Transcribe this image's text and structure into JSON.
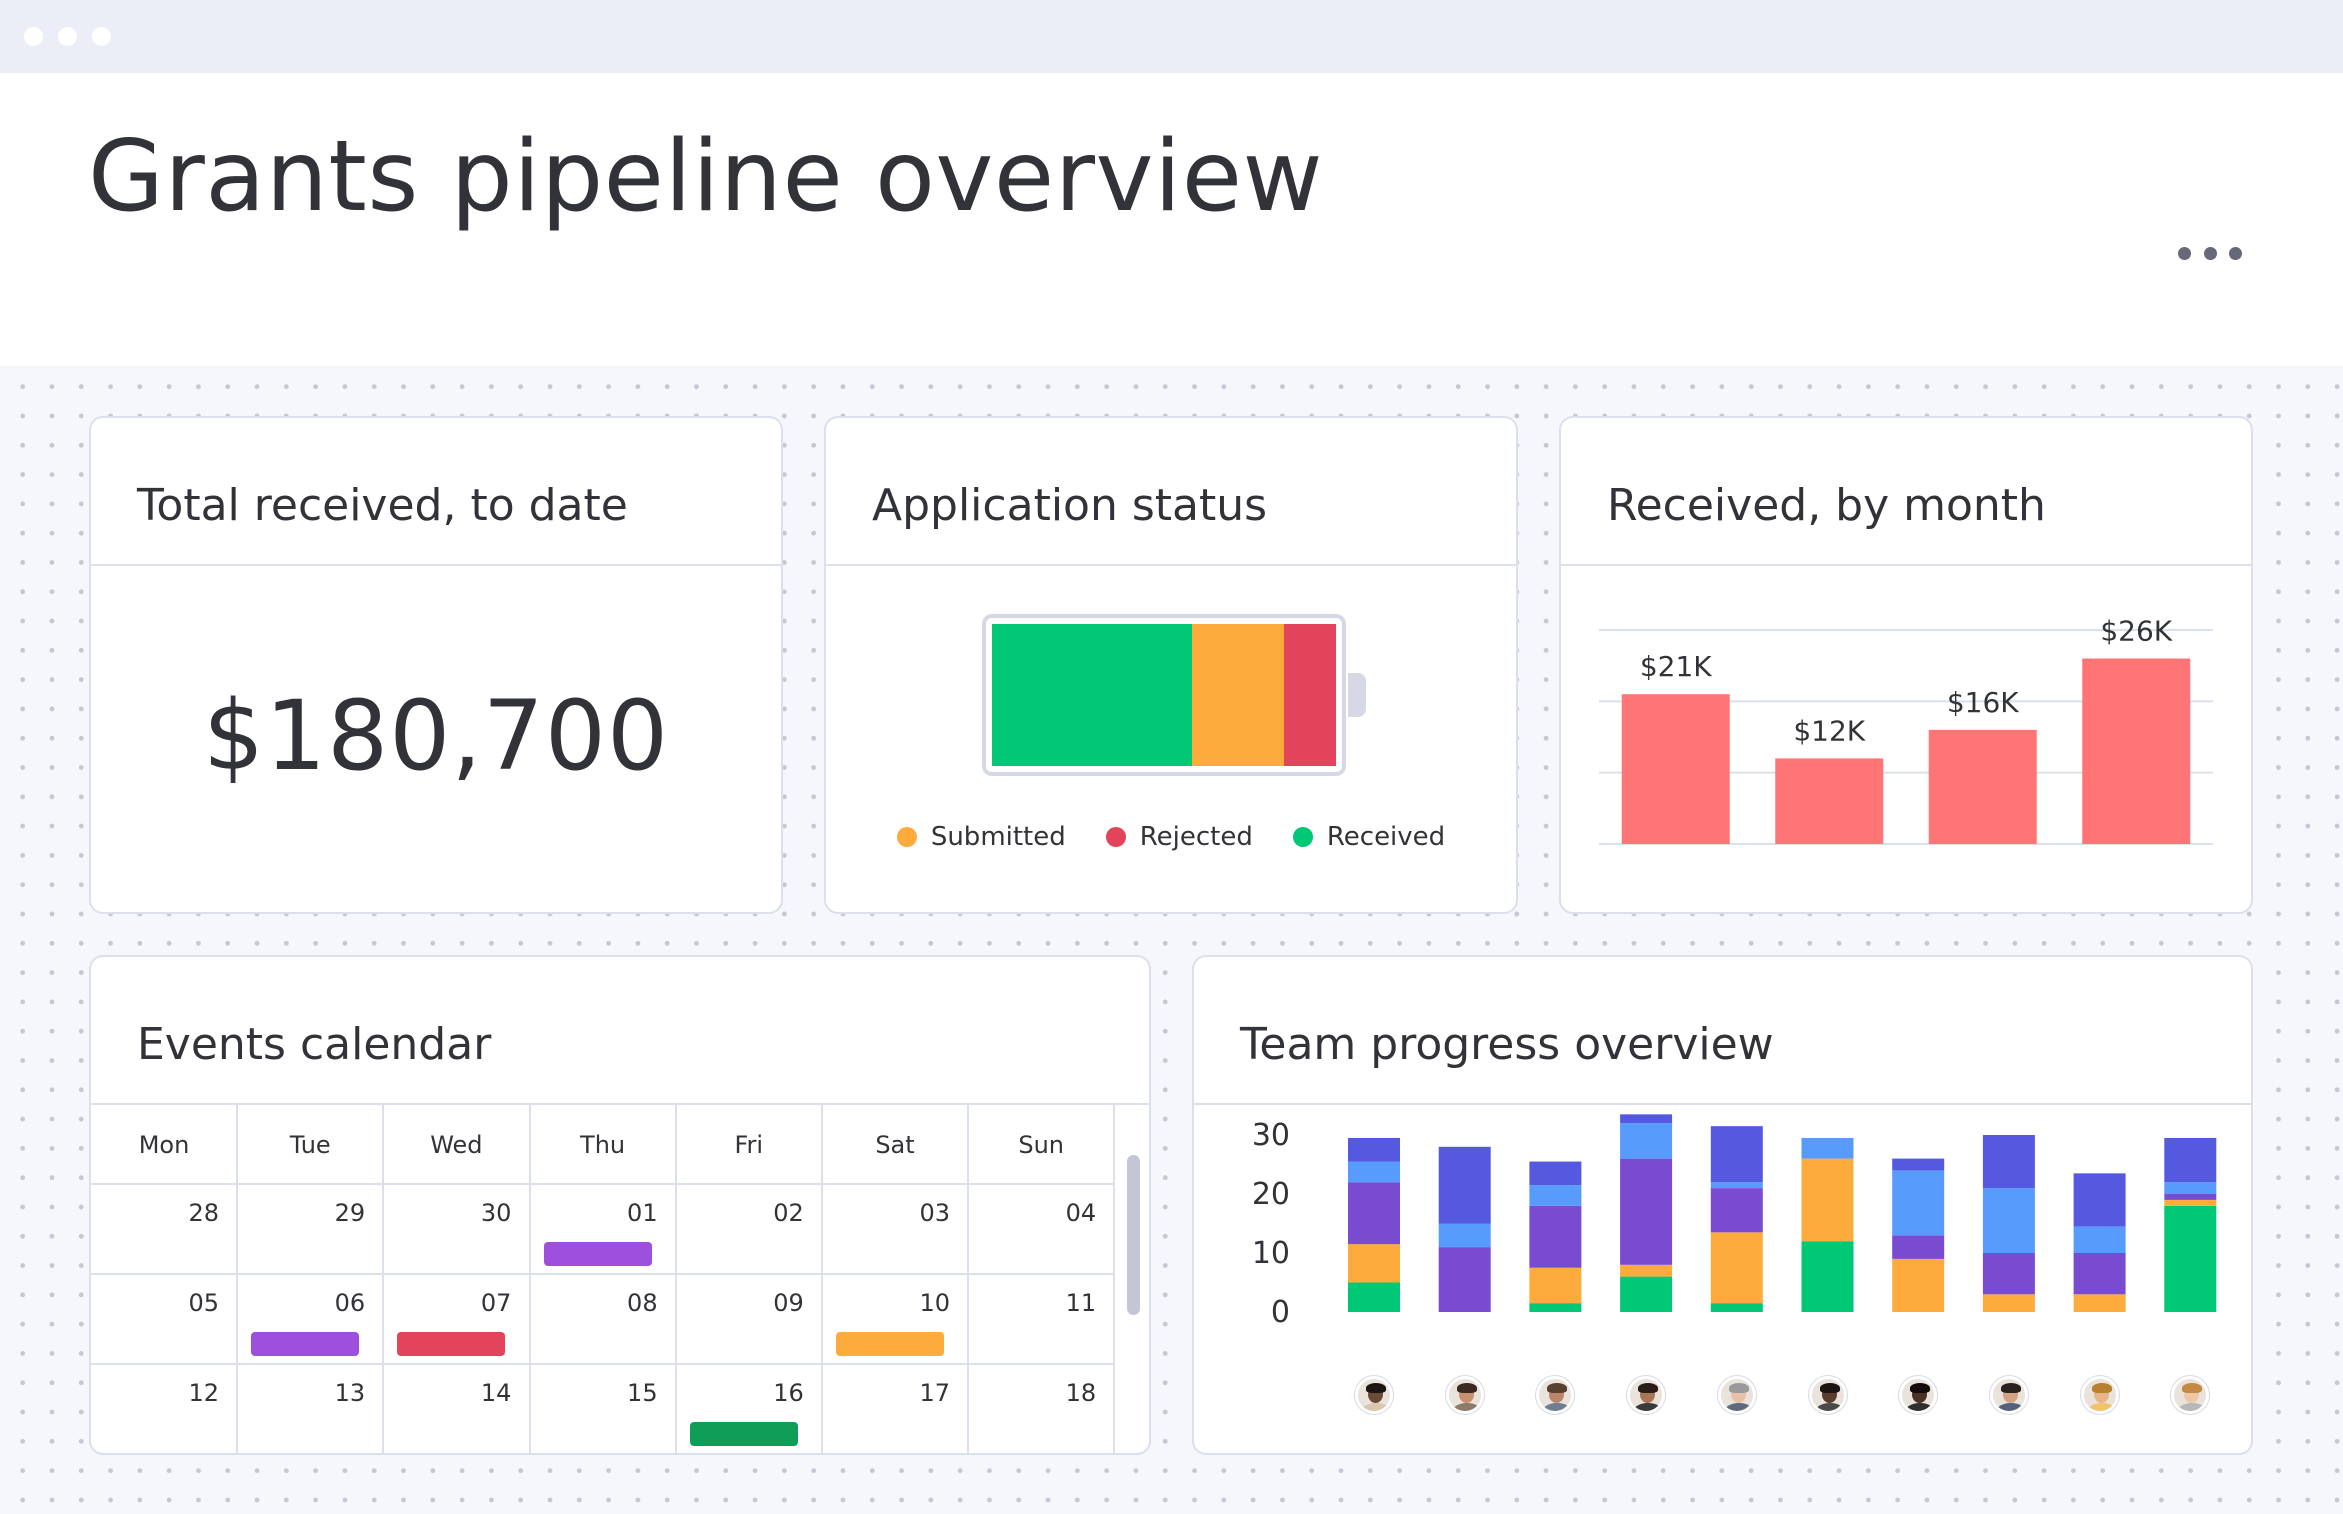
{
  "header": {
    "title": "Grants pipeline overview",
    "more_icon": "more-horizontal-icon"
  },
  "total_card": {
    "title": "Total received, to date",
    "value": "$180,700"
  },
  "status_card": {
    "title": "Application status",
    "chart_data": {
      "type": "bar",
      "segments": [
        {
          "name": "Received",
          "share": 0.58,
          "color": "#00c875"
        },
        {
          "name": "Submitted",
          "share": 0.27,
          "color": "#fdab3d"
        },
        {
          "name": "Rejected",
          "share": 0.15,
          "color": "#e2445c"
        }
      ]
    },
    "legend": [
      {
        "label": "Submitted",
        "color": "#fdab3d"
      },
      {
        "label": "Rejected",
        "color": "#e2445c"
      },
      {
        "label": "Received",
        "color": "#00c875"
      }
    ]
  },
  "monthly_card": {
    "title": "Received, by month",
    "chart_data": {
      "type": "bar",
      "values": [
        21,
        12,
        16,
        26
      ],
      "labels": [
        "$21K",
        "$12K",
        "$16K",
        "$26K"
      ],
      "ylim": [
        0,
        30
      ],
      "color": "#ff7575",
      "grid": true
    }
  },
  "calendar_card": {
    "title": "Events calendar",
    "days": [
      "Mon",
      "Tue",
      "Wed",
      "Thu",
      "Fri",
      "Sat",
      "Sun"
    ],
    "weeks": [
      [
        "28",
        "29",
        "30",
        "01",
        "02",
        "03",
        "04"
      ],
      [
        "05",
        "06",
        "07",
        "08",
        "09",
        "10",
        "11"
      ],
      [
        "12",
        "13",
        "14",
        "15",
        "16",
        "17",
        "18"
      ]
    ],
    "events": [
      {
        "week": 0,
        "day": 3,
        "color": "#9d50dd"
      },
      {
        "week": 1,
        "day": 1,
        "color": "#9d50dd"
      },
      {
        "week": 1,
        "day": 2,
        "color": "#e2445c"
      },
      {
        "week": 1,
        "day": 5,
        "color": "#fdab3d"
      },
      {
        "week": 2,
        "day": 4,
        "color": "#0f9d58"
      }
    ]
  },
  "team_card": {
    "title": "Team progress overview",
    "chart_data": {
      "type": "bar",
      "stacked": true,
      "ylim": [
        0,
        30
      ],
      "yticks": [
        "30",
        "20",
        "10",
        "0"
      ],
      "categories": [
        "1",
        "2",
        "3",
        "4",
        "5",
        "6",
        "7",
        "8",
        "9",
        "10"
      ],
      "series": [
        {
          "color": "#00c875",
          "values": [
            5,
            0,
            1.5,
            6,
            1.5,
            12,
            0,
            0,
            0,
            18
          ]
        },
        {
          "color": "#fdab3d",
          "values": [
            6.5,
            0,
            6,
            2,
            12,
            14,
            9,
            3,
            3,
            1
          ]
        },
        {
          "color": "#784bd1",
          "values": [
            10.5,
            11,
            10.5,
            18,
            7.5,
            0,
            4,
            7,
            7,
            1
          ]
        },
        {
          "color": "#579bfc",
          "values": [
            3.5,
            4,
            3.5,
            6,
            1,
            3.5,
            11,
            11,
            4.5,
            2
          ]
        },
        {
          "color": "#5559df",
          "values": [
            4,
            13,
            4,
            1.5,
            9.5,
            0,
            2,
            9,
            9,
            7.5
          ]
        }
      ]
    },
    "avatars": [
      {
        "icon": "person-avatar-icon",
        "skin": "#6b4a36",
        "hair": "#1e1512",
        "shirt": "#d9c7b0"
      },
      {
        "icon": "person-avatar-icon",
        "skin": "#c98f6e",
        "hair": "#3a2a22",
        "shirt": "#8c7a6a"
      },
      {
        "icon": "person-avatar-icon",
        "skin": "#b8876b",
        "hair": "#5a4030",
        "shirt": "#6f7d92"
      },
      {
        "icon": "person-avatar-icon",
        "skin": "#a77558",
        "hair": "#2b1d17",
        "shirt": "#3a3a3a"
      },
      {
        "icon": "person-avatar-icon",
        "skin": "#e5c2a8",
        "hair": "#9a9a9a",
        "shirt": "#5c6b7d"
      },
      {
        "icon": "person-avatar-icon",
        "skin": "#5a3d2e",
        "hair": "#1b1411",
        "shirt": "#4a4a4a"
      },
      {
        "icon": "person-avatar-icon",
        "skin": "#4a3226",
        "hair": "#120d0b",
        "shirt": "#2f2f2f"
      },
      {
        "icon": "person-avatar-icon",
        "skin": "#d3a283",
        "hair": "#2a2220",
        "shirt": "#55607a"
      },
      {
        "icon": "person-avatar-icon",
        "skin": "#e8b48a",
        "hair": "#b9802f",
        "shirt": "#f0c46a"
      },
      {
        "icon": "person-avatar-icon",
        "skin": "#edc7a8",
        "hair": "#c48a44",
        "shirt": "#b7b7b7"
      }
    ]
  }
}
